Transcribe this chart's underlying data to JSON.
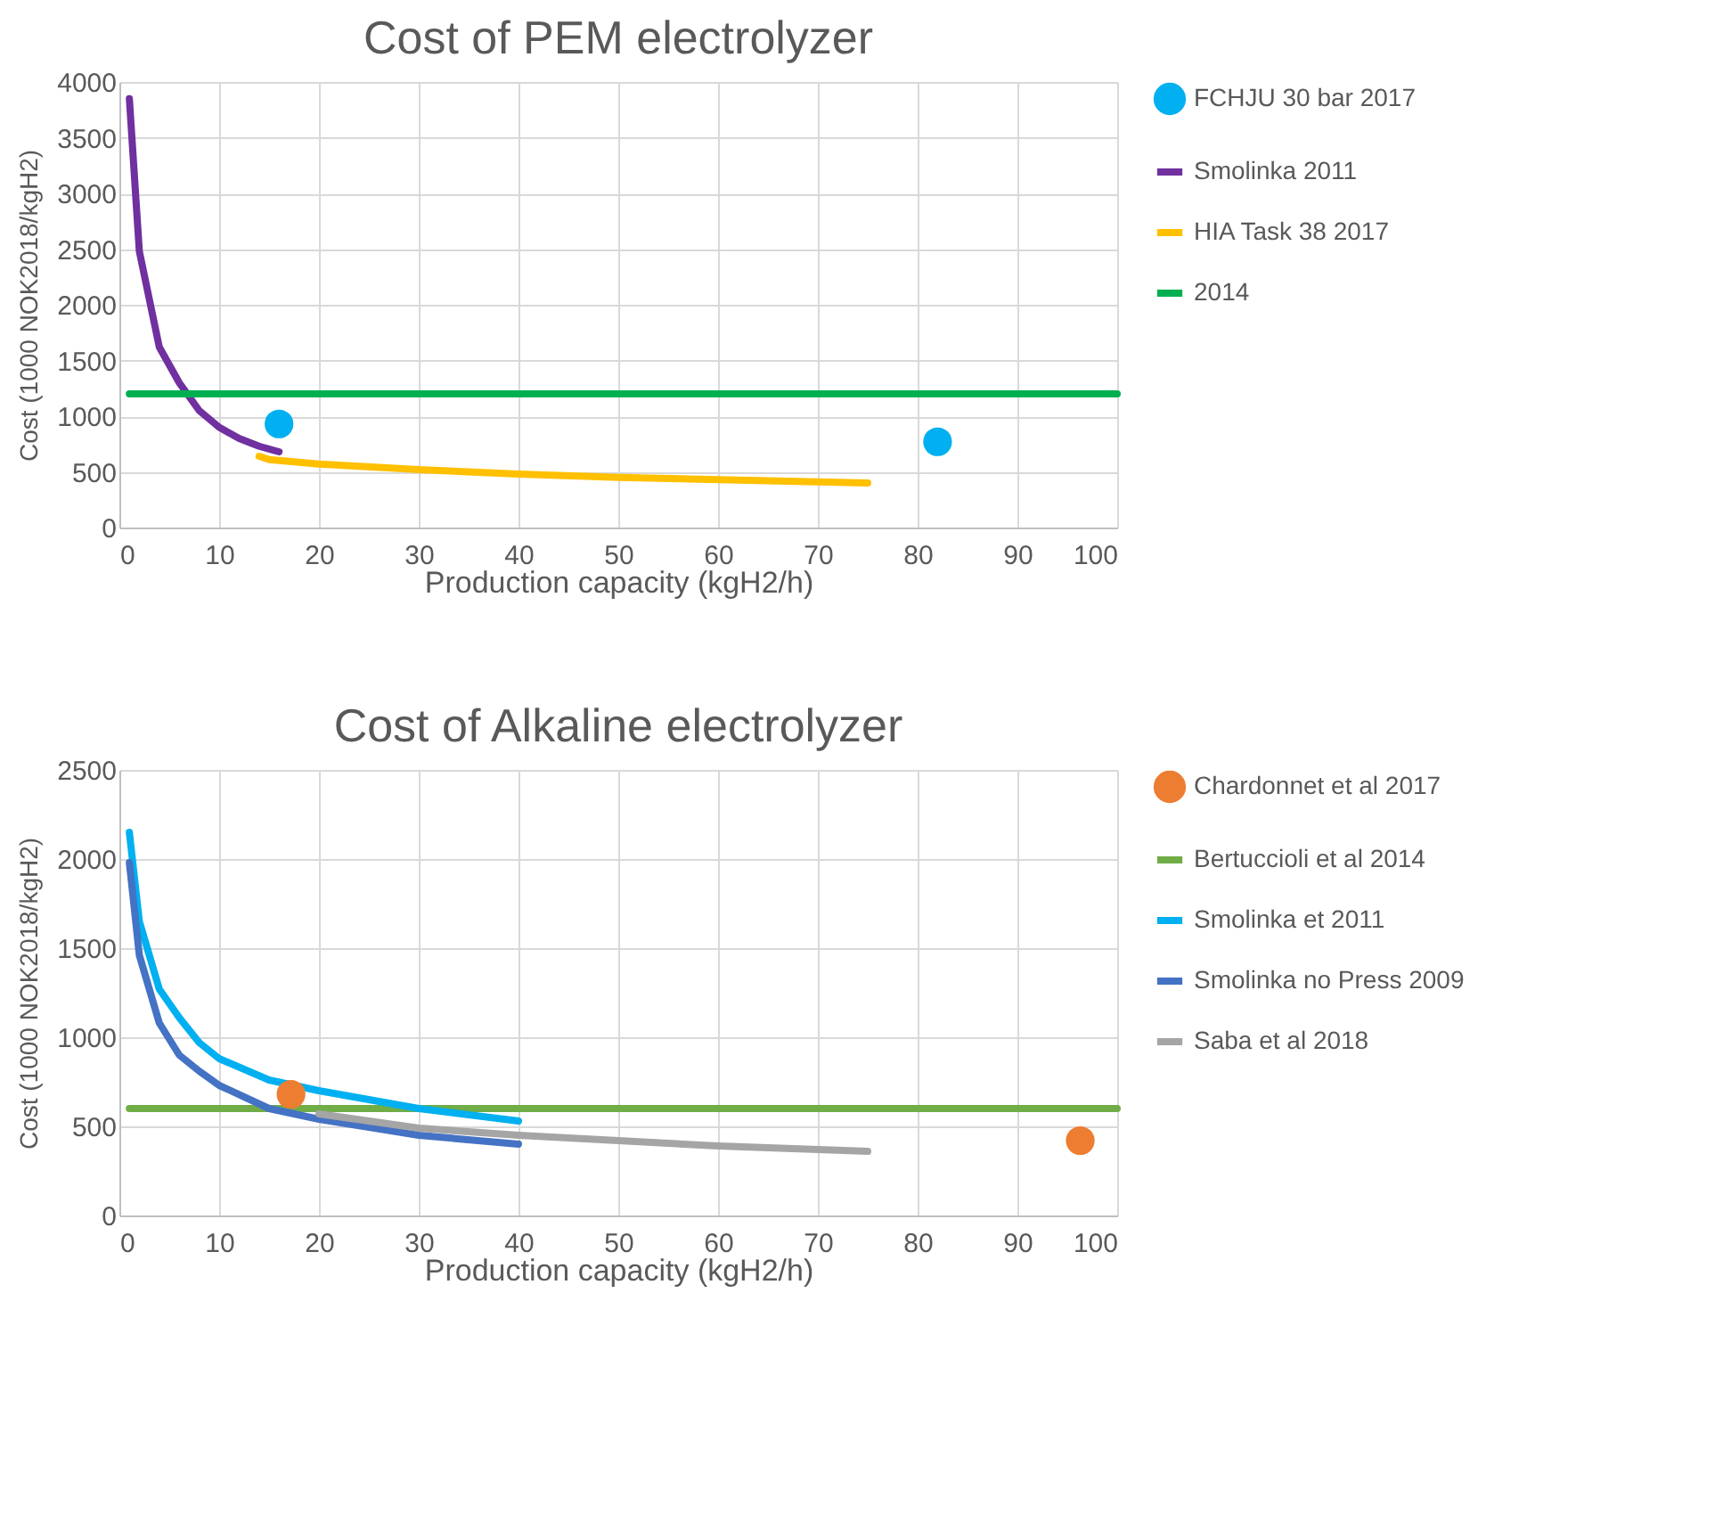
{
  "chart_data": [
    {
      "type": "line",
      "title": "Cost of PEM electrolyzer",
      "xlabel": "Production capacity (kgH2/h)",
      "ylabel": "Cost (1000 NOK2018/kgH2)",
      "xlim": [
        0,
        100
      ],
      "xticks": [
        0,
        10,
        20,
        30,
        40,
        50,
        60,
        70,
        80,
        90,
        100
      ],
      "ylim": [
        0,
        4000
      ],
      "yticks": [
        0,
        500,
        1000,
        1500,
        2000,
        2500,
        3000,
        3500,
        4000
      ],
      "grid": true,
      "legend": "right",
      "series": [
        {
          "name": "FCHJU 30 bar 2017",
          "type": "scatter",
          "color": "#00b0f0",
          "x": [
            16,
            82
          ],
          "values": [
            930,
            770
          ]
        },
        {
          "name": "Smolinka 2011",
          "type": "line",
          "color": "#7030a0",
          "x": [
            1,
            2,
            4,
            6,
            8,
            10,
            12,
            14,
            16
          ],
          "values": [
            3850,
            2480,
            1620,
            1300,
            1050,
            900,
            800,
            730,
            680
          ]
        },
        {
          "name": "HIA Task 38 2017",
          "type": "line",
          "color": "#ffc000",
          "x": [
            14,
            15,
            20,
            30,
            40,
            50,
            60,
            75
          ],
          "values": [
            640,
            610,
            570,
            520,
            480,
            450,
            430,
            400
          ]
        },
        {
          "name": "2014",
          "type": "line",
          "color": "#00b050",
          "x": [
            1,
            100
          ],
          "values": [
            1200,
            1200
          ]
        }
      ]
    },
    {
      "type": "line",
      "title": "Cost of Alkaline electrolyzer",
      "xlabel": "Production capacity (kgH2/h)",
      "ylabel": "Cost (1000 NOK2018/kgH2)",
      "xlim": [
        0,
        100
      ],
      "xticks": [
        0,
        10,
        20,
        30,
        40,
        50,
        60,
        70,
        80,
        90,
        100
      ],
      "ylim": [
        0,
        2500
      ],
      "yticks": [
        0,
        500,
        1000,
        1500,
        2000,
        2500
      ],
      "grid": true,
      "legend": "right",
      "series": [
        {
          "name": "Chardonnet et al 2017",
          "type": "scatter",
          "color": "#ed7d31",
          "x": [
            17.2,
            96.3
          ],
          "values": [
            680,
            420
          ]
        },
        {
          "name": "Bertuccioli et al 2014",
          "type": "line",
          "color": "#70ad47",
          "x": [
            1,
            100
          ],
          "values": [
            600,
            600
          ]
        },
        {
          "name": "Smolinka et 2011",
          "type": "line",
          "color": "#00b0f0",
          "x": [
            1,
            2,
            4,
            6,
            8,
            10,
            15,
            20,
            30,
            40
          ],
          "values": [
            2150,
            1650,
            1270,
            1110,
            970,
            880,
            760,
            700,
            600,
            530
          ]
        },
        {
          "name": "Smolinka no Press 2009",
          "type": "line",
          "color": "#4472c4",
          "x": [
            1,
            2,
            4,
            6,
            8,
            10,
            15,
            20,
            30,
            40
          ],
          "values": [
            1980,
            1460,
            1080,
            900,
            810,
            730,
            600,
            540,
            450,
            400
          ]
        },
        {
          "name": "Saba et al 2018",
          "type": "line",
          "color": "#a5a5a5",
          "x": [
            20,
            30,
            40,
            50,
            60,
            75
          ],
          "values": [
            570,
            490,
            450,
            420,
            390,
            360
          ]
        }
      ]
    }
  ]
}
